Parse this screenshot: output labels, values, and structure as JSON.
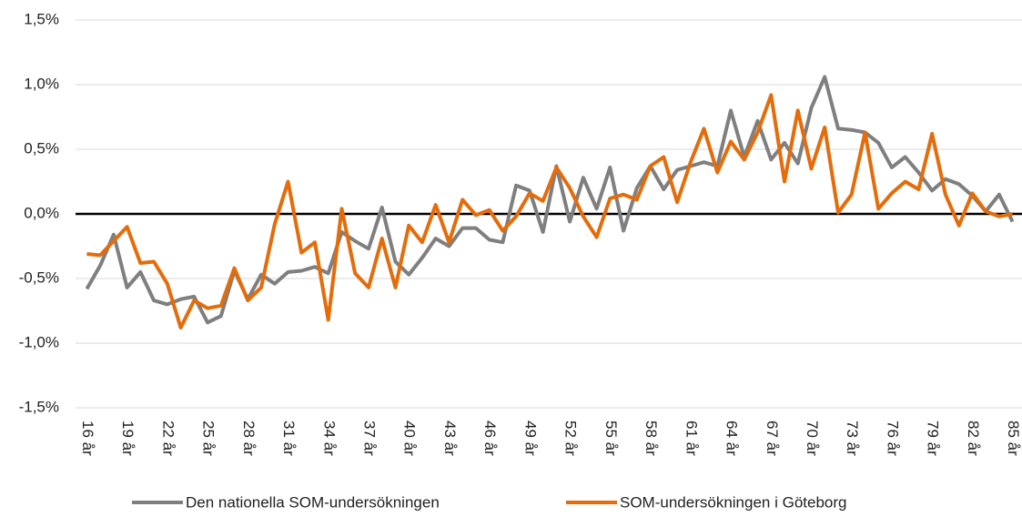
{
  "chart_data": {
    "type": "line",
    "categories": [
      "16 år",
      null,
      null,
      "19 år",
      null,
      null,
      "22 år",
      null,
      null,
      "25 år",
      null,
      null,
      "28 år",
      null,
      null,
      "31 år",
      null,
      null,
      "34 år",
      null,
      null,
      "37 år",
      null,
      null,
      "40 år",
      null,
      null,
      "43 år",
      null,
      null,
      "46 år",
      null,
      null,
      "49 år",
      null,
      null,
      "52 år",
      null,
      null,
      "55 år",
      null,
      null,
      "58 år",
      null,
      null,
      "61 år",
      null,
      null,
      "64 år",
      null,
      null,
      "67 år",
      null,
      null,
      "70 år",
      null,
      null,
      "73 år",
      null,
      null,
      "76 år",
      null,
      null,
      "79 år",
      null,
      null,
      "82 år",
      null,
      null,
      "85 år"
    ],
    "series": [
      {
        "name": "Den nationella SOM-undersökningen",
        "color": "#7f7f7f",
        "values": [
          -0.58,
          -0.4,
          -0.16,
          -0.57,
          -0.45,
          -0.67,
          -0.7,
          -0.66,
          -0.64,
          -0.84,
          -0.79,
          -0.44,
          -0.66,
          -0.47,
          -0.54,
          -0.45,
          -0.44,
          -0.41,
          -0.46,
          -0.14,
          -0.21,
          -0.27,
          0.05,
          -0.37,
          -0.47,
          -0.34,
          -0.19,
          -0.25,
          -0.11,
          -0.11,
          -0.2,
          -0.22,
          0.22,
          0.18,
          -0.14,
          0.37,
          -0.06,
          0.28,
          0.04,
          0.36,
          -0.13,
          0.2,
          0.37,
          0.19,
          0.34,
          0.37,
          0.4,
          0.37,
          0.8,
          0.44,
          0.72,
          0.42,
          0.55,
          0.39,
          0.82,
          1.06,
          0.66,
          0.65,
          0.63,
          0.55,
          0.36,
          0.44,
          0.32,
          0.18,
          0.27,
          0.23,
          0.14,
          0.02,
          0.15,
          -0.06
        ]
      },
      {
        "name": "SOM-undersökningen i Göteborg",
        "color": "#e46c0a",
        "values": [
          -0.31,
          -0.32,
          -0.21,
          -0.1,
          -0.38,
          -0.37,
          -0.54,
          -0.88,
          -0.67,
          -0.73,
          -0.71,
          -0.42,
          -0.67,
          -0.57,
          -0.08,
          0.25,
          -0.3,
          -0.22,
          -0.82,
          0.04,
          -0.46,
          -0.57,
          -0.19,
          -0.57,
          -0.09,
          -0.22,
          0.07,
          -0.22,
          0.11,
          -0.01,
          0.03,
          -0.13,
          -0.02,
          0.16,
          0.1,
          0.36,
          0.2,
          -0.02,
          -0.18,
          0.12,
          0.15,
          0.11,
          0.37,
          0.44,
          0.09,
          0.4,
          0.66,
          0.32,
          0.56,
          0.42,
          0.63,
          0.92,
          0.25,
          0.8,
          0.35,
          0.67,
          0.01,
          0.15,
          0.63,
          0.04,
          0.16,
          0.25,
          0.19,
          0.62,
          0.15,
          -0.09,
          0.16,
          0.02,
          -0.02,
          0.0
        ]
      }
    ],
    "ylim": [
      -1.5,
      1.5
    ],
    "yticks": [
      {
        "value": -1.5,
        "label": "-1,5%"
      },
      {
        "value": -1.0,
        "label": "-1,0%"
      },
      {
        "value": -0.5,
        "label": "-0,5%"
      },
      {
        "value": 0,
        "label": "0,0%"
      },
      {
        "value": 0.5,
        "label": "0,5%"
      },
      {
        "value": 1.0,
        "label": "1,0%"
      },
      {
        "value": 1.5,
        "label": "1,5%"
      }
    ],
    "grid": true,
    "legend": "bottom"
  }
}
